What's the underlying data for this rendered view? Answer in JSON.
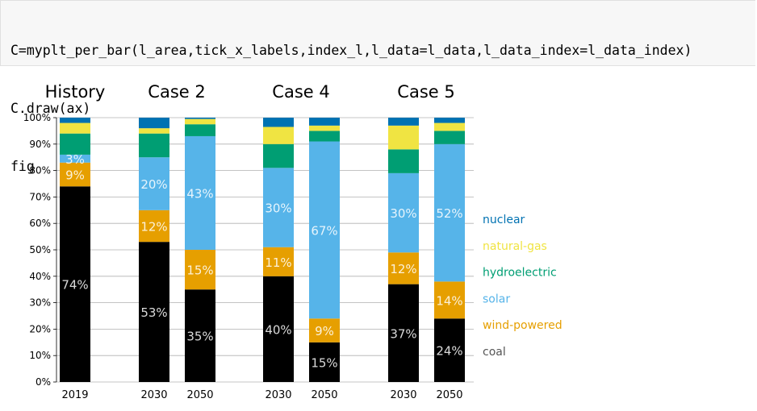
{
  "code": {
    "line1": "C=myplt_per_bar(l_area,tick_x_labels,index_l,l_data=l_data,l_data_index=l_data_index)",
    "line2": "C.draw(ax)",
    "line3": "fig"
  },
  "chart_data": {
    "type": "bar",
    "stacked": true,
    "group_titles": [
      "History",
      "Case 2",
      "Case 4",
      "Case 5"
    ],
    "categories": [
      "2019",
      "2030",
      "2050",
      "2030",
      "2050",
      "2030",
      "2050"
    ],
    "ylim": [
      0,
      100
    ],
    "yticks": [
      "0%",
      "10%",
      "20%",
      "30%",
      "40%",
      "50%",
      "60%",
      "70%",
      "80%",
      "90%",
      "100%"
    ],
    "grid": true,
    "legend_position": "right",
    "series": [
      {
        "name": "coal",
        "color": "#000000",
        "label_color": "#555555",
        "values": [
          74,
          53,
          35,
          40,
          15,
          37,
          24
        ],
        "labels": [
          "74%",
          "53%",
          "35%",
          "40%",
          "15%",
          "37%",
          "24%"
        ]
      },
      {
        "name": "wind-powered",
        "color": "#e69f00",
        "label_color": "#e69f00",
        "values": [
          9,
          12,
          15,
          11,
          9,
          12,
          14
        ],
        "labels": [
          "9%",
          "12%",
          "15%",
          "11%",
          "9%",
          "12%",
          "14%"
        ]
      },
      {
        "name": "solar",
        "color": "#56b4e9",
        "label_color": "#56b4e9",
        "values": [
          3,
          20,
          43,
          30,
          67,
          30,
          52
        ],
        "labels": [
          "3%",
          "20%",
          "43%",
          "30%",
          "67%",
          "30%",
          "52%"
        ]
      },
      {
        "name": "hydroelectric",
        "color": "#009e73",
        "label_color": "#009e73",
        "values": [
          8,
          9,
          4.5,
          9,
          4,
          9,
          5
        ],
        "labels": [
          "",
          "",
          "",
          "",
          "",
          "",
          ""
        ]
      },
      {
        "name": "natural-gas",
        "color": "#f0e442",
        "label_color": "#f0e442",
        "values": [
          4,
          2,
          2,
          6.5,
          2,
          9,
          3
        ],
        "labels": [
          "",
          "",
          "",
          "",
          "",
          "",
          ""
        ]
      },
      {
        "name": "nuclear",
        "color": "#0072b2",
        "label_color": "#0072b2",
        "values": [
          2,
          4,
          0.5,
          3.5,
          3,
          3,
          2
        ],
        "labels": [
          "",
          "",
          "",
          "",
          "",
          "",
          ""
        ]
      }
    ]
  }
}
